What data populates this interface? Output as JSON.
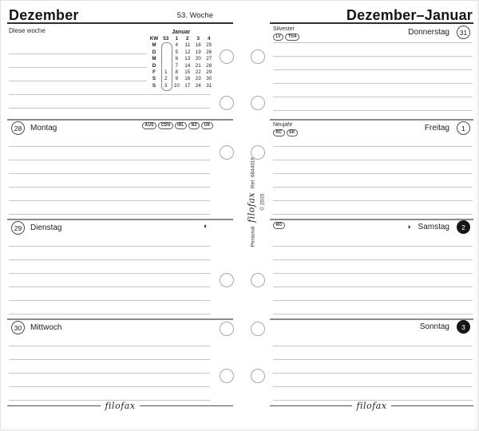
{
  "left_page": {
    "month_title": "Dezember",
    "week_label": "53. Woche",
    "this_week_label": "Diese woche",
    "mini_calendar": {
      "title": "Januar",
      "col_header": [
        "KW",
        "53",
        "1",
        "2",
        "3",
        "4"
      ],
      "highlighted_week": "53",
      "rows": [
        {
          "day": "M",
          "cells": [
            "",
            "4",
            "11",
            "18",
            "25"
          ]
        },
        {
          "day": "D",
          "cells": [
            "",
            "5",
            "12",
            "19",
            "26"
          ]
        },
        {
          "day": "M",
          "cells": [
            "",
            "6",
            "13",
            "20",
            "27"
          ]
        },
        {
          "day": "D",
          "cells": [
            "",
            "7",
            "14",
            "21",
            "28"
          ]
        },
        {
          "day": "F",
          "cells": [
            "1",
            "8",
            "15",
            "22",
            "29"
          ]
        },
        {
          "day": "S",
          "cells": [
            "2",
            "9",
            "16",
            "23",
            "30"
          ]
        },
        {
          "day": "S",
          "cells": [
            "3",
            "10",
            "17",
            "24",
            "31"
          ]
        }
      ]
    },
    "days": [
      {
        "number": "28",
        "name": "Montag",
        "badges": [
          "AUS",
          "CDN",
          "IRL",
          "NZ",
          "UK"
        ],
        "moon": ""
      },
      {
        "number": "29",
        "name": "Dienstag",
        "badges": [],
        "moon": "◐"
      },
      {
        "number": "30",
        "name": "Mittwoch",
        "badges": [],
        "moon": ""
      }
    ],
    "logo": "filofax"
  },
  "right_page": {
    "month_title": "Dezember–Januar",
    "days": [
      {
        "number": "31",
        "name": "Donnerstag",
        "holiday": "Silvester",
        "badges": [
          "LV",
          "THA"
        ],
        "moon": "",
        "filled": false
      },
      {
        "number": "1",
        "name": "Freitag",
        "holiday": "Neujahr",
        "badges": [
          "RC",
          "SK"
        ],
        "moon": "",
        "filled": false
      },
      {
        "number": "2",
        "name": "Samstag",
        "holiday": "",
        "badges": [
          "RO"
        ],
        "moon": "◑",
        "filled": true
      },
      {
        "number": "3",
        "name": "Sonntag",
        "holiday": "",
        "badges": [],
        "moon": "",
        "filled": true
      }
    ],
    "logo": "filofax"
  },
  "spine": {
    "product": "Personal",
    "brand": "filofax",
    "ref": "Ref. 6844016",
    "copyright": "© 2015"
  },
  "colors": {
    "ink": "#1c1c1c",
    "rule_light": "#c6c6c6",
    "rule_dark": "#8a8a8a",
    "header_rule": "#2f2f2f"
  }
}
